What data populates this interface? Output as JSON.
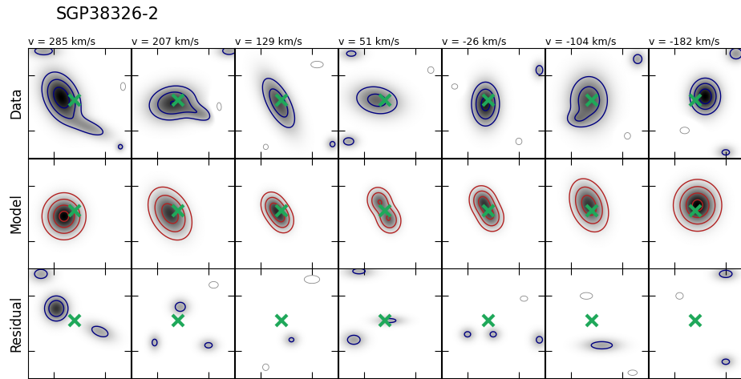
{
  "chart_data": {
    "type": "channel_map",
    "title": "SGP38326-2",
    "columns": [
      "v = 285 km/s",
      "v = 207 km/s",
      "v = 129 km/s",
      "v = 51 km/s",
      "v = -26 km/s",
      "v = -104 km/s",
      "v = -182 km/s"
    ],
    "xlim": [
      -1,
      1
    ],
    "ylim": [
      -1,
      1
    ],
    "xticks": [
      -0.5,
      0.5
    ],
    "yticks": [
      -0.5,
      0.5
    ],
    "tick_labels": false,
    "color_range": [
      0,
      10
    ],
    "marker": {
      "x": -0.1,
      "y": 0.05,
      "color": "#1fa85a"
    },
    "rows": [
      {
        "label": "Data",
        "color": "#000080",
        "negative_color": "#888888",
        "levels": [
          2.5,
          5,
          8
        ],
        "negative_levels": [
          -2.5
        ],
        "panels": [
          [
            {
              "x": -0.35,
              "y": 0.1,
              "sx": 0.2,
              "sy": 0.3,
              "pa": 30,
              "amp": 10
            },
            {
              "x": 0.2,
              "y": -0.45,
              "sx": 0.28,
              "sy": 0.1,
              "pa": -20,
              "amp": 4
            },
            {
              "x": -0.7,
              "y": 0.95,
              "sx": 0.2,
              "sy": 0.08,
              "pa": 0,
              "amp": 3.5
            },
            {
              "x": 0.85,
              "y": 0.3,
              "sx": 0.08,
              "sy": 0.12,
              "pa": 0,
              "amp": -3
            },
            {
              "x": 0.8,
              "y": -0.8,
              "sx": 0.06,
              "sy": 0.06,
              "pa": 0,
              "amp": 3
            }
          ],
          [
            {
              "x": -0.2,
              "y": 0.0,
              "sx": 0.3,
              "sy": 0.2,
              "pa": 10,
              "amp": 8
            },
            {
              "x": 0.35,
              "y": -0.2,
              "sx": 0.22,
              "sy": 0.1,
              "pa": -15,
              "amp": 4
            },
            {
              "x": 0.7,
              "y": -0.1,
              "sx": 0.1,
              "sy": 0.2,
              "pa": 0,
              "amp": -3
            },
            {
              "x": 0.9,
              "y": 0.95,
              "sx": 0.15,
              "sy": 0.08,
              "pa": 0,
              "amp": 3.5
            }
          ],
          [
            {
              "x": -0.15,
              "y": 0.0,
              "sx": 0.15,
              "sy": 0.35,
              "pa": 30,
              "amp": 7
            },
            {
              "x": 0.6,
              "y": 0.7,
              "sx": 0.2,
              "sy": 0.1,
              "pa": 0,
              "amp": -3
            },
            {
              "x": -0.4,
              "y": -0.8,
              "sx": 0.08,
              "sy": 0.08,
              "pa": 0,
              "amp": -3
            },
            {
              "x": 0.9,
              "y": -0.75,
              "sx": 0.08,
              "sy": 0.08,
              "pa": 0,
              "amp": 3
            }
          ],
          [
            {
              "x": -0.25,
              "y": 0.05,
              "sx": 0.3,
              "sy": 0.18,
              "pa": -10,
              "amp": 6
            },
            {
              "x": -0.8,
              "y": -0.7,
              "sx": 0.12,
              "sy": 0.08,
              "pa": 0,
              "amp": 3.5
            },
            {
              "x": 0.8,
              "y": 0.6,
              "sx": 0.1,
              "sy": 0.1,
              "pa": 0,
              "amp": -3
            },
            {
              "x": -0.75,
              "y": 0.9,
              "sx": 0.15,
              "sy": 0.08,
              "pa": 0,
              "amp": 3
            }
          ],
          [
            {
              "x": -0.15,
              "y": -0.02,
              "sx": 0.17,
              "sy": 0.25,
              "pa": 0,
              "amp": 9
            },
            {
              "x": 0.9,
              "y": 0.6,
              "sx": 0.08,
              "sy": 0.1,
              "pa": 0,
              "amp": 3.5
            },
            {
              "x": -0.75,
              "y": 0.3,
              "sx": 0.1,
              "sy": 0.08,
              "pa": 0,
              "amp": -3
            },
            {
              "x": 0.5,
              "y": -0.7,
              "sx": 0.1,
              "sy": 0.1,
              "pa": 0,
              "amp": -3
            }
          ],
          [
            {
              "x": -0.15,
              "y": 0.05,
              "sx": 0.25,
              "sy": 0.3,
              "pa": 0,
              "amp": 7
            },
            {
              "x": -0.4,
              "y": -0.3,
              "sx": 0.15,
              "sy": 0.1,
              "pa": 0,
              "amp": 3
            },
            {
              "x": 0.8,
              "y": 0.8,
              "sx": 0.1,
              "sy": 0.1,
              "pa": 0,
              "amp": 3.5
            },
            {
              "x": 0.6,
              "y": -0.6,
              "sx": 0.1,
              "sy": 0.1,
              "pa": 0,
              "amp": -3
            }
          ],
          [
            {
              "x": 0.1,
              "y": 0.12,
              "sx": 0.18,
              "sy": 0.2,
              "pa": 0,
              "amp": 10
            },
            {
              "x": 0.7,
              "y": 0.9,
              "sx": 0.12,
              "sy": 0.1,
              "pa": 0,
              "amp": 4
            },
            {
              "x": -0.3,
              "y": -0.5,
              "sx": 0.15,
              "sy": 0.1,
              "pa": 0,
              "amp": -3
            },
            {
              "x": 0.5,
              "y": -0.9,
              "sx": 0.12,
              "sy": 0.08,
              "pa": 0,
              "amp": 3
            }
          ]
        ]
      },
      {
        "label": "Model",
        "color": "#b22222",
        "negative_color": "#888888",
        "levels": [
          1,
          3,
          6,
          9
        ],
        "negative_levels": [],
        "panels": [
          [
            {
              "x": -0.3,
              "y": -0.05,
              "sx": 0.2,
              "sy": 0.2,
              "pa": 0,
              "amp": 10
            }
          ],
          [
            {
              "x": -0.25,
              "y": 0.0,
              "sx": 0.18,
              "sy": 0.26,
              "pa": 35,
              "amp": 8
            }
          ],
          [
            {
              "x": -0.25,
              "y": 0.12,
              "sx": 0.12,
              "sy": 0.15,
              "pa": 30,
              "amp": 6
            },
            {
              "x": -0.1,
              "y": -0.08,
              "sx": 0.12,
              "sy": 0.15,
              "pa": 30,
              "amp": 6
            }
          ],
          [
            {
              "x": -0.2,
              "y": 0.22,
              "sx": 0.12,
              "sy": 0.14,
              "pa": 30,
              "amp": 6
            },
            {
              "x": -0.02,
              "y": -0.1,
              "sx": 0.12,
              "sy": 0.14,
              "pa": 30,
              "amp": 6
            }
          ],
          [
            {
              "x": -0.2,
              "y": 0.22,
              "sx": 0.13,
              "sy": 0.15,
              "pa": 30,
              "amp": 7
            },
            {
              "x": -0.05,
              "y": -0.05,
              "sx": 0.13,
              "sy": 0.15,
              "pa": 30,
              "amp": 6
            }
          ],
          [
            {
              "x": -0.15,
              "y": 0.15,
              "sx": 0.17,
              "sy": 0.25,
              "pa": 25,
              "amp": 8
            }
          ],
          [
            {
              "x": -0.05,
              "y": 0.15,
              "sx": 0.22,
              "sy": 0.22,
              "pa": 0,
              "amp": 10
            }
          ]
        ]
      },
      {
        "label": "Residual",
        "color": "#000080",
        "negative_color": "#888888",
        "levels": [
          2.5,
          5,
          8
        ],
        "negative_levels": [
          -2.5
        ],
        "panels": [
          [
            {
              "x": -0.45,
              "y": 0.27,
              "sx": 0.15,
              "sy": 0.15,
              "pa": 0,
              "amp": 8
            },
            {
              "x": 0.4,
              "y": -0.15,
              "sx": 0.2,
              "sy": 0.1,
              "pa": -20,
              "amp": 3.5
            },
            {
              "x": -0.75,
              "y": 0.9,
              "sx": 0.15,
              "sy": 0.1,
              "pa": 0,
              "amp": 3.5
            }
          ],
          [
            {
              "x": -0.05,
              "y": 0.3,
              "sx": 0.12,
              "sy": 0.1,
              "pa": 0,
              "amp": 3.5
            },
            {
              "x": -0.55,
              "y": -0.35,
              "sx": 0.08,
              "sy": 0.1,
              "pa": 0,
              "amp": 3
            },
            {
              "x": 0.5,
              "y": -0.4,
              "sx": 0.12,
              "sy": 0.08,
              "pa": 0,
              "amp": 3
            },
            {
              "x": 0.6,
              "y": 0.7,
              "sx": 0.15,
              "sy": 0.1,
              "pa": 0,
              "amp": -3
            }
          ],
          [
            {
              "x": 0.5,
              "y": 0.8,
              "sx": 0.25,
              "sy": 0.12,
              "pa": 0,
              "amp": -3
            },
            {
              "x": -0.4,
              "y": -0.8,
              "sx": 0.1,
              "sy": 0.1,
              "pa": 0,
              "amp": -3
            },
            {
              "x": 0.1,
              "y": -0.3,
              "sx": 0.1,
              "sy": 0.08,
              "pa": 0,
              "amp": 2.8
            }
          ],
          [
            {
              "x": -0.7,
              "y": -0.3,
              "sx": 0.15,
              "sy": 0.1,
              "pa": 0,
              "amp": 3.5
            },
            {
              "x": 0.0,
              "y": 0.05,
              "sx": 0.2,
              "sy": 0.06,
              "pa": 0,
              "amp": 3
            },
            {
              "x": -0.6,
              "y": 0.95,
              "sx": 0.2,
              "sy": 0.08,
              "pa": 0,
              "amp": 3
            }
          ],
          [
            {
              "x": -0.5,
              "y": -0.2,
              "sx": 0.1,
              "sy": 0.08,
              "pa": 0,
              "amp": 3
            },
            {
              "x": 0.0,
              "y": -0.2,
              "sx": 0.1,
              "sy": 0.08,
              "pa": 0,
              "amp": 3
            },
            {
              "x": 0.6,
              "y": 0.45,
              "sx": 0.12,
              "sy": 0.08,
              "pa": 0,
              "amp": -3
            },
            {
              "x": 0.9,
              "y": -0.3,
              "sx": 0.1,
              "sy": 0.1,
              "pa": 0,
              "amp": 3
            }
          ],
          [
            {
              "x": 0.1,
              "y": -0.4,
              "sx": 0.25,
              "sy": 0.08,
              "pa": 0,
              "amp": 3.5
            },
            {
              "x": -0.2,
              "y": 0.5,
              "sx": 0.2,
              "sy": 0.1,
              "pa": 0,
              "amp": -3
            },
            {
              "x": 0.7,
              "y": -0.9,
              "sx": 0.15,
              "sy": 0.08,
              "pa": 0,
              "amp": -3
            }
          ],
          [
            {
              "x": 0.5,
              "y": 0.9,
              "sx": 0.15,
              "sy": 0.08,
              "pa": 0,
              "amp": 3.5
            },
            {
              "x": -0.4,
              "y": 0.5,
              "sx": 0.12,
              "sy": 0.1,
              "pa": 0,
              "amp": -3
            },
            {
              "x": 0.5,
              "y": -0.7,
              "sx": 0.12,
              "sy": 0.08,
              "pa": 0,
              "amp": 3
            }
          ]
        ]
      }
    ]
  }
}
